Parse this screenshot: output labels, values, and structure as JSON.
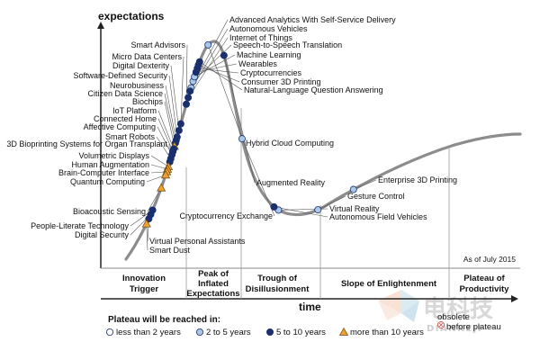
{
  "chart_data": {
    "type": "hype_cycle",
    "ylabel": "expectations",
    "xlabel": "time",
    "as_of": "As of July 2015",
    "phases": [
      "Innovation Trigger",
      "Peak of Inflated Expectations",
      "Trough of Disillusionment",
      "Slope of Enlightenment",
      "Plateau of Productivity"
    ],
    "legend_title": "Plateau will be reached in:",
    "legend_items": [
      {
        "key": "lt2",
        "label": "less than 2 years",
        "marker": "circle",
        "fill": "#ffffff"
      },
      {
        "key": "2to5",
        "label": "2 to 5 years",
        "marker": "circle",
        "fill": "#a9c8e8"
      },
      {
        "key": "5to10",
        "label": "5 to 10 years",
        "marker": "circle",
        "fill": "#1b2f6e"
      },
      {
        "key": "gt10",
        "label": "more than 10 years",
        "marker": "triangle",
        "fill": "#f0a030"
      },
      {
        "key": "obsolete",
        "label": "obsolete before plateau",
        "marker": "x-circle",
        "fill": "#ffffff"
      }
    ],
    "technologies": [
      {
        "name": "Advanced Analytics With Self-Service Delivery",
        "category": "2to5",
        "t": 0.27
      },
      {
        "name": "Autonomous Vehicles",
        "category": "5to10",
        "t": 0.265
      },
      {
        "name": "Internet of Things",
        "category": "5to10",
        "t": 0.255
      },
      {
        "name": "Speech-to-Speech Translation",
        "category": "2to5",
        "t": 0.28
      },
      {
        "name": "Smart Advisors",
        "category": "5to10",
        "t": 0.245
      },
      {
        "name": "Machine Learning",
        "category": "2to5",
        "t": 0.287
      },
      {
        "name": "Micro Data Centers",
        "category": "5to10",
        "t": 0.215
      },
      {
        "name": "Wearables",
        "category": "5to10",
        "t": 0.294
      },
      {
        "name": "Digital Dexterity",
        "category": "5to10",
        "t": 0.205
      },
      {
        "name": "Cryptocurrencies",
        "category": "5to10",
        "t": 0.3
      },
      {
        "name": "Software-Defined Security",
        "category": "5to10",
        "t": 0.195
      },
      {
        "name": "Consumer 3D Printing",
        "category": "5to10",
        "t": 0.305
      },
      {
        "name": "Natural-Language Question Answering",
        "category": "5to10",
        "t": 0.31
      },
      {
        "name": "Neurobusiness",
        "category": "5to10",
        "t": 0.19
      },
      {
        "name": "Citizen Data Science",
        "category": "5to10",
        "t": 0.186
      },
      {
        "name": "Biochips",
        "category": "gt10",
        "t": 0.181
      },
      {
        "name": "IoT Platform",
        "category": "5to10",
        "t": 0.177
      },
      {
        "name": "Connected Home",
        "category": "5to10",
        "t": 0.173
      },
      {
        "name": "Affective Computing",
        "category": "5to10",
        "t": 0.168
      },
      {
        "name": "Smart Robots",
        "category": "5to10",
        "t": 0.162
      },
      {
        "name": "3D Bioprinting Systems for Organ Transplant",
        "category": "5to10",
        "t": 0.157
      },
      {
        "name": "Hybrid Cloud Computing",
        "category": "2to5",
        "t": 0.338
      },
      {
        "name": "Volumetric Displays",
        "category": "gt10",
        "t": 0.15
      },
      {
        "name": "Human Augmentation",
        "category": "gt10",
        "t": 0.146
      },
      {
        "name": "Brain-Computer Interface",
        "category": "gt10",
        "t": 0.142
      },
      {
        "name": "Quantum Computing",
        "category": "gt10",
        "t": 0.137
      },
      {
        "name": "Augmented Reality",
        "category": "5to10",
        "t": 0.375
      },
      {
        "name": "Enterprise 3D Printing",
        "category": "2to5",
        "t": 0.74
      },
      {
        "name": "Gesture Control",
        "category": "2to5",
        "t": 0.68
      },
      {
        "name": "Bioacoustic Sensing",
        "category": "gt10",
        "t": 0.117
      },
      {
        "name": "Cryptocurrency Exchange",
        "category": "2to5",
        "t": 0.5
      },
      {
        "name": "Virtual Reality",
        "category": "2to5",
        "t": 0.62
      },
      {
        "name": "Autonomous Field Vehicles",
        "category": "5to10",
        "t": 0.612
      },
      {
        "name": "People-Literate Technology",
        "category": "5to10",
        "t": 0.082
      },
      {
        "name": "Digital Security",
        "category": "5to10",
        "t": 0.075
      },
      {
        "name": "Virtual Personal Assistants",
        "category": "5to10",
        "t": 0.068
      },
      {
        "name": "Smart Dust",
        "category": "gt10",
        "t": 0.06
      }
    ]
  },
  "watermark": {
    "text": "电科技",
    "subtext": "DIANKEJI"
  }
}
